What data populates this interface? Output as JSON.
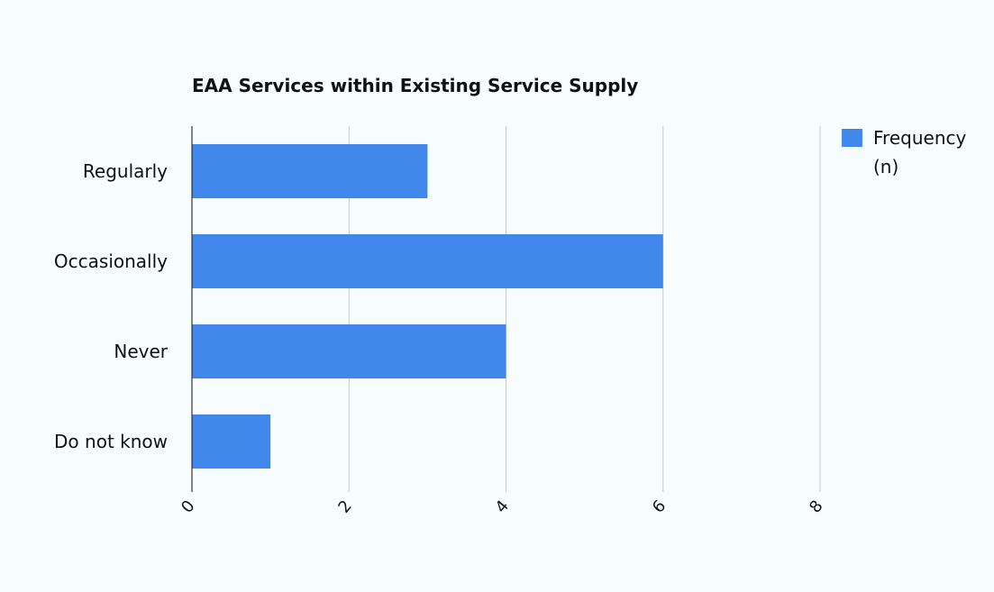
{
  "chart_data": {
    "type": "bar",
    "orientation": "horizontal",
    "title": "EAA Services within Existing Service Supply",
    "categories": [
      "Regularly",
      "Occasionally",
      "Never",
      "Do not know"
    ],
    "series": [
      {
        "name": "Frequency (n)",
        "legend_lines": [
          "Frequency",
          "(n)"
        ],
        "values": [
          3,
          6,
          4,
          1
        ],
        "color": "#4287eb"
      }
    ],
    "x_ticks": [
      "0",
      "2",
      "4",
      "6",
      "8"
    ],
    "xlim": [
      0,
      8
    ],
    "grid": true,
    "legend_position": "top-right"
  },
  "colors": {
    "background": "#f7fdfd",
    "gridline": "#cccccc",
    "axis": "#333333",
    "bar": "#4287eb"
  }
}
